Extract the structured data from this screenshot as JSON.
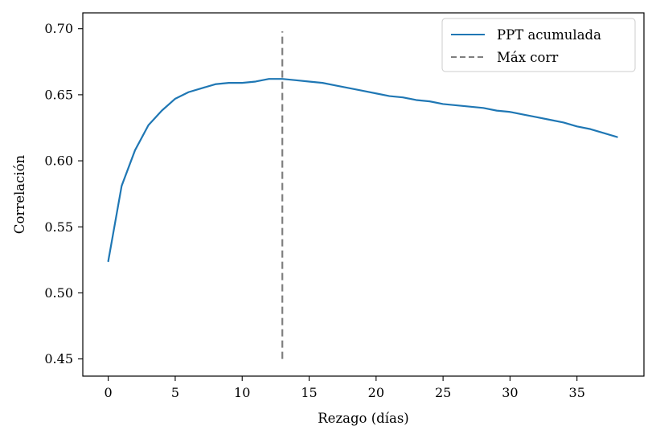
{
  "chart_data": {
    "type": "line",
    "title": "",
    "xlabel": "Rezago (días)",
    "ylabel": "Correlación",
    "xlim": [
      -1.9,
      40.0
    ],
    "ylim": [
      0.437,
      0.712
    ],
    "xticks": [
      0,
      5,
      10,
      15,
      20,
      25,
      30,
      35
    ],
    "yticks": [
      0.45,
      0.5,
      0.55,
      0.6,
      0.65,
      0.7
    ],
    "ytick_labels": [
      "0.45",
      "0.50",
      "0.55",
      "0.60",
      "0.65",
      "0.70"
    ],
    "grid": false,
    "legend": {
      "position": "top-right"
    },
    "series": [
      {
        "name": "PPT acumulada",
        "color": "#1f77b4",
        "style": "solid",
        "x": [
          0,
          1,
          2,
          3,
          4,
          5,
          6,
          7,
          8,
          9,
          10,
          11,
          12,
          13,
          14,
          15,
          16,
          17,
          18,
          19,
          20,
          21,
          22,
          23,
          24,
          25,
          26,
          27,
          28,
          29,
          30,
          31,
          32,
          33,
          34,
          35,
          36,
          37,
          38
        ],
        "y": [
          0.524,
          0.581,
          0.608,
          0.627,
          0.638,
          0.647,
          0.652,
          0.655,
          0.658,
          0.659,
          0.659,
          0.66,
          0.662,
          0.662,
          0.661,
          0.66,
          0.659,
          0.657,
          0.655,
          0.653,
          0.651,
          0.649,
          0.648,
          0.646,
          0.645,
          0.643,
          0.642,
          0.641,
          0.64,
          0.638,
          0.637,
          0.635,
          0.633,
          0.631,
          0.629,
          0.626,
          0.624,
          0.621,
          0.618
        ]
      },
      {
        "name": "Máx corr",
        "color": "#7f7f7f",
        "style": "dashed",
        "x": [
          13,
          13
        ],
        "y": [
          0.45,
          0.698
        ]
      }
    ]
  }
}
